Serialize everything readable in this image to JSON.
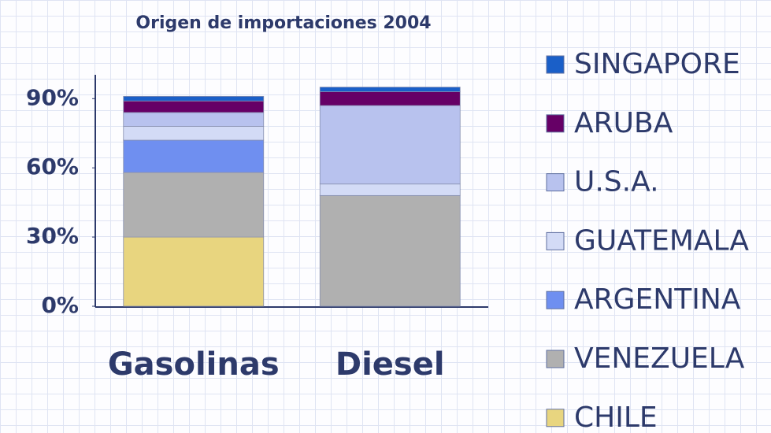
{
  "chart_data": {
    "type": "stacked_bar",
    "title": "Origen de importaciones 2004",
    "categories": [
      "Gasolinas",
      "Diesel"
    ],
    "series": [
      {
        "name": "CHILE",
        "color": "#e8d57f",
        "values": [
          30,
          0
        ]
      },
      {
        "name": "VENEZUELA",
        "color": "#b0b0b0",
        "values": [
          28,
          48
        ]
      },
      {
        "name": "ARGENTINA",
        "color": "#6f8ff0",
        "values": [
          14,
          0
        ]
      },
      {
        "name": "GUATEMALA",
        "color": "#d3dbf6",
        "values": [
          6,
          5
        ]
      },
      {
        "name": "U.S.A.",
        "color": "#b8c2ee",
        "values": [
          6,
          34
        ]
      },
      {
        "name": "ARUBA",
        "color": "#660066",
        "values": [
          5,
          6
        ]
      },
      {
        "name": "SINGAPORE",
        "color": "#1a5fc8",
        "values": [
          2,
          2
        ]
      }
    ],
    "ylim": [
      0,
      100
    ],
    "yticks": [
      {
        "value": 0,
        "label": "0%"
      },
      {
        "value": 30,
        "label": "30%"
      },
      {
        "value": 60,
        "label": "60%"
      },
      {
        "value": 90,
        "label": "90%"
      }
    ],
    "legend": "right"
  }
}
